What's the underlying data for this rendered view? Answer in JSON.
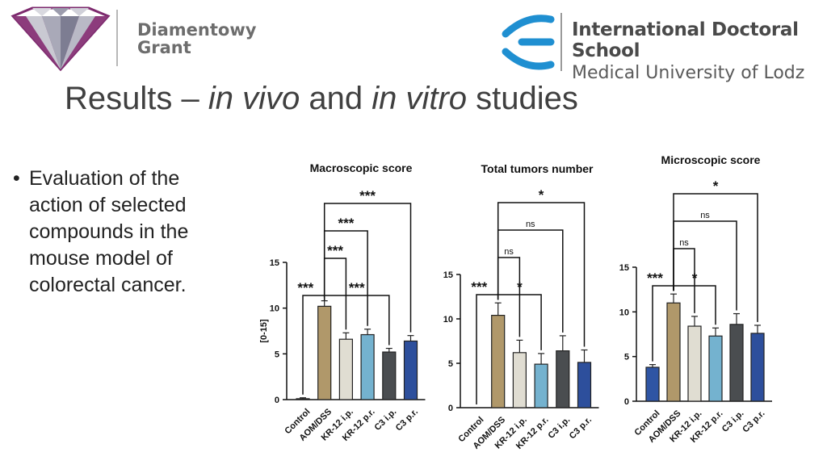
{
  "header": {
    "left_logo_line1": "Diamentowy",
    "left_logo_line2": "Grant",
    "right_logo_line1": "International Doctoral School",
    "right_logo_line2": "Medical University of Lodz"
  },
  "title": {
    "part1": "Results – ",
    "part2": "in vivo",
    "part3": " and ",
    "part4": "in vitro",
    "part5": " studies"
  },
  "bullet": {
    "text": "Evaluation of the action of selected compounds in the mouse model of colorectal cancer."
  },
  "colors": {
    "control": "#2f55a4",
    "aomdss": "#b0986a",
    "kr12ip": "#e0ddd2",
    "kr12pr": "#74b2cf",
    "c3ip": "#4a4d50",
    "c3pr": "#2d4f9c"
  },
  "chart_data": [
    {
      "type": "bar",
      "title": "Macroscopic score",
      "ylabel": "[0-15]",
      "categories": [
        "Control",
        "AOM/DSS",
        "KR-12 i.p.",
        "KR-12 p.r.",
        "C3 i.p.",
        "C3 p.r."
      ],
      "values": [
        0.1,
        10.2,
        6.6,
        7.1,
        5.2,
        6.4
      ],
      "errors": [
        0.1,
        0.6,
        0.7,
        0.6,
        0.4,
        0.6
      ],
      "ylim": [
        0,
        15
      ],
      "yticks": [
        0,
        5,
        10,
        15
      ],
      "significance": [
        {
          "from": 0,
          "to": 1,
          "label": "***",
          "level": 1
        },
        {
          "from": 1,
          "to": 4,
          "label": "***",
          "level": 1
        },
        {
          "from": 1,
          "to": 2,
          "label": "***",
          "level": 2
        },
        {
          "from": 1,
          "to": 3,
          "label": "***",
          "level": 3
        },
        {
          "from": 1,
          "to": 5,
          "label": "***",
          "level": 4
        }
      ]
    },
    {
      "type": "bar",
      "title": "Total tumors number",
      "ylabel": "",
      "categories": [
        "Control",
        "AOM/DSS",
        "KR-12 i.p.",
        "KR-12 p.r.",
        "C3 i.p.",
        "C3 p.r."
      ],
      "values": [
        0,
        10.4,
        6.2,
        4.9,
        6.4,
        5.1
      ],
      "errors": [
        0,
        1.4,
        1.4,
        1.2,
        1.7,
        1.4
      ],
      "ylim": [
        0,
        15
      ],
      "yticks": [
        0,
        5,
        10,
        15
      ],
      "significance": [
        {
          "from": 0,
          "to": 1,
          "label": "***",
          "level": 1
        },
        {
          "from": 1,
          "to": 3,
          "label": "*",
          "level": 1
        },
        {
          "from": 1,
          "to": 2,
          "label": "ns",
          "level": 2
        },
        {
          "from": 1,
          "to": 4,
          "label": "ns",
          "level": 3
        },
        {
          "from": 1,
          "to": 5,
          "label": "*",
          "level": 4
        }
      ]
    },
    {
      "type": "bar",
      "title": "Microscopic score",
      "ylabel": "",
      "categories": [
        "Control",
        "AOM/DSS",
        "KR-12 i.p.",
        "KR-12 p.r.",
        "C3 i.p.",
        "C3 p.r."
      ],
      "values": [
        3.8,
        11.0,
        8.4,
        7.3,
        8.6,
        7.6
      ],
      "errors": [
        0.3,
        1.0,
        1.1,
        0.9,
        1.2,
        0.9
      ],
      "ylim": [
        0,
        15
      ],
      "yticks": [
        0,
        5,
        10,
        15
      ],
      "significance": [
        {
          "from": 0,
          "to": 1,
          "label": "***",
          "level": 1
        },
        {
          "from": 1,
          "to": 3,
          "label": "*",
          "level": 1
        },
        {
          "from": 1,
          "to": 2,
          "label": "ns",
          "level": 2
        },
        {
          "from": 1,
          "to": 4,
          "label": "ns",
          "level": 3
        },
        {
          "from": 1,
          "to": 5,
          "label": "*",
          "level": 4
        }
      ]
    }
  ]
}
